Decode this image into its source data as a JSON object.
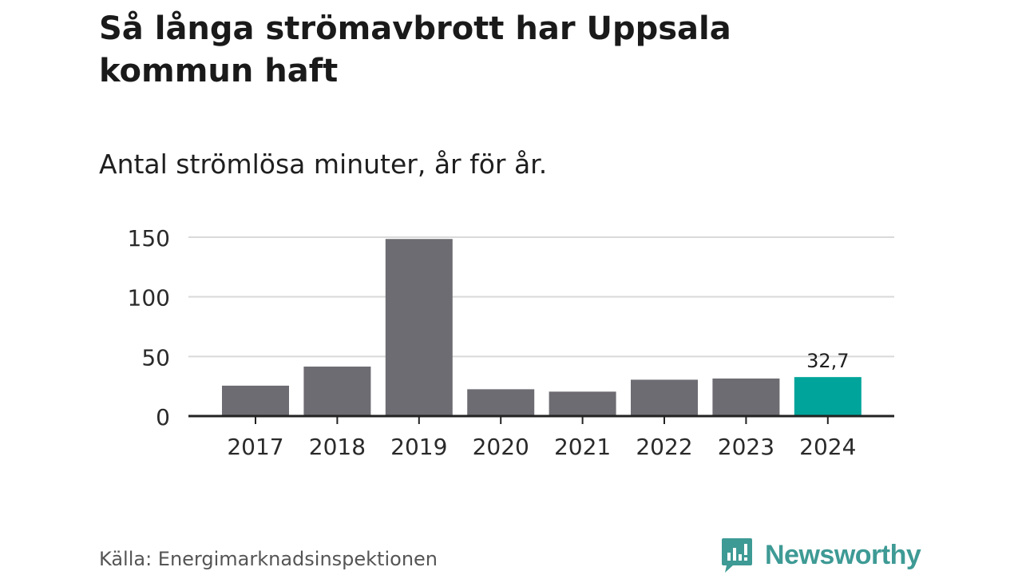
{
  "header": {
    "title": "Så långa strömavbrott har Uppsala kommun haft",
    "subtitle": "Antal strömlösa minuter, år för år."
  },
  "footer": {
    "source": "Källa: Energimarknadsinspektionen",
    "brand": "Newsworthy",
    "logo_icon": "bar-chart-logo-icon"
  },
  "colors": {
    "bar": "#6d6c72",
    "highlight": "#00a49a",
    "grid": "#d9d9d9",
    "axis": "#222222",
    "brand": "#3e9a95"
  },
  "chart_data": {
    "type": "bar",
    "title": "Så långa strömavbrott har Uppsala kommun haft",
    "subtitle": "Antal strömlösa minuter, år för år.",
    "xlabel": "",
    "ylabel": "",
    "categories": [
      "2017",
      "2018",
      "2019",
      "2020",
      "2021",
      "2022",
      "2023",
      "2024"
    ],
    "values": [
      25.5,
      41.5,
      148.5,
      22.5,
      20.5,
      30.5,
      31.5,
      32.7
    ],
    "highlight_index": 7,
    "data_labels": [
      {
        "index": 7,
        "text": "32,7"
      }
    ],
    "ylim": [
      0,
      150
    ],
    "yticks": [
      0,
      50,
      100,
      150
    ],
    "grid": true
  }
}
